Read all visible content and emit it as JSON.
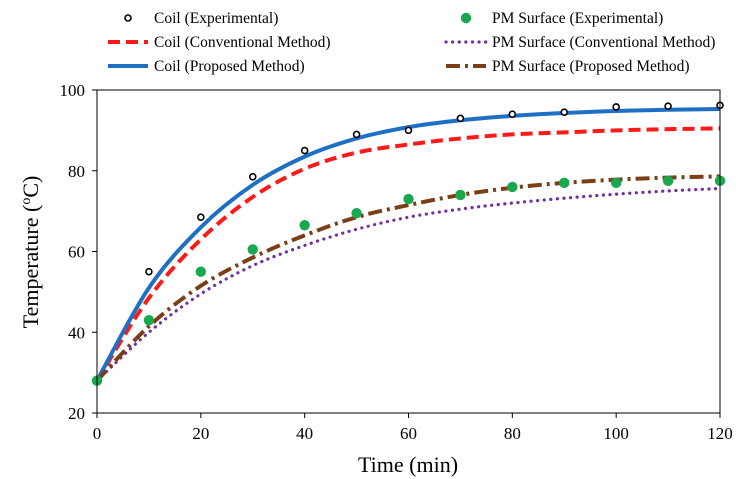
{
  "chart_data": {
    "type": "line",
    "xlabel": "Time (min)",
    "ylabel": "Temperature (",
    "ylabel_unit": "C)",
    "ylabel_sup": "o",
    "xlim": [
      0,
      120
    ],
    "ylim": [
      20,
      100
    ],
    "x_ticks": [
      0,
      20,
      40,
      60,
      80,
      100,
      120
    ],
    "y_ticks": [
      20,
      40,
      60,
      80,
      100
    ],
    "grid": false,
    "legend_placement": "top, above plot, two columns",
    "series": [
      {
        "name": "Coil (Experimental)",
        "style": "open-marker",
        "color": "#000000",
        "x": [
          0,
          10,
          20,
          30,
          40,
          50,
          60,
          70,
          80,
          90,
          100,
          110,
          120
        ],
        "y": [
          28,
          55,
          68.5,
          78.5,
          85,
          89,
          90,
          93,
          94,
          94.5,
          95.8,
          96,
          96.2
        ]
      },
      {
        "name": "PM Surface (Experimental)",
        "style": "filled-marker",
        "color": "#1aa84f",
        "x": [
          0,
          10,
          20,
          30,
          40,
          50,
          60,
          70,
          80,
          90,
          100,
          110,
          120
        ],
        "y": [
          28,
          43,
          55,
          60.5,
          66.5,
          69.5,
          73,
          74,
          76,
          77,
          77,
          77.5,
          77.5
        ]
      },
      {
        "name": "Coil (Conventional Method)",
        "style": "dashed",
        "color": "#ff1a1a",
        "x": [
          0,
          10,
          20,
          30,
          40,
          50,
          60,
          70,
          80,
          90,
          100,
          110,
          120
        ],
        "y": [
          28,
          48.5,
          63,
          73.5,
          80.5,
          84.5,
          86.5,
          88,
          89,
          89.5,
          90,
          90.3,
          90.5
        ]
      },
      {
        "name": "PM Surface (Conventional Method)",
        "style": "dotted",
        "color": "#7030a0",
        "x": [
          0,
          10,
          20,
          30,
          40,
          50,
          60,
          70,
          80,
          90,
          100,
          110,
          120
        ],
        "y": [
          28,
          40,
          49.5,
          56.5,
          61.5,
          65.5,
          68.5,
          70.5,
          72,
          73.2,
          74.2,
          75,
          75.6
        ]
      },
      {
        "name": "Coil (Proposed Method)",
        "style": "solid",
        "color": "#1f6fc5",
        "x": [
          0,
          10,
          20,
          30,
          40,
          50,
          60,
          70,
          80,
          90,
          100,
          110,
          120
        ],
        "y": [
          28,
          51,
          66,
          76.5,
          83.5,
          88,
          90.8,
          92.5,
          93.6,
          94.3,
          94.8,
          95.1,
          95.3
        ]
      },
      {
        "name": "PM Surface (Proposed Method)",
        "style": "dash-dot",
        "color": "#7b3f17",
        "x": [
          0,
          10,
          20,
          30,
          40,
          50,
          60,
          70,
          80,
          90,
          100,
          110,
          120
        ],
        "y": [
          28,
          41.5,
          51.5,
          58.5,
          64,
          68.5,
          71.5,
          74,
          75.8,
          77,
          77.8,
          78.3,
          78.6
        ]
      }
    ]
  }
}
